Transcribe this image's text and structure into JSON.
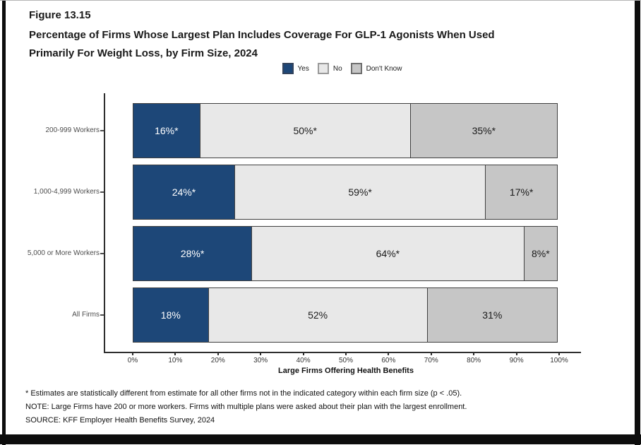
{
  "page": {
    "figure_label": "Figure 13.15",
    "title": "Percentage of Firms Whose Largest Plan Includes Coverage For GLP-1 Agonists When Used\nPrimarily For Weight Loss, by Firm Size, 2024"
  },
  "legend": {
    "items": [
      {
        "label": "Yes",
        "color": "#1d4778",
        "border": "#33435c"
      },
      {
        "label": "No",
        "color": "#e8e8e8",
        "border": "#9a9a9a"
      },
      {
        "label": "Don't Know",
        "color": "#c6c6c6",
        "border": "#6f6f6f"
      }
    ]
  },
  "chart_data": {
    "type": "bar",
    "orientation": "horizontal_stacked",
    "title": "Percentage of Firms Whose Largest Plan Includes Coverage For GLP-1 Agonists When Used Primarily For Weight Loss, by Firm Size, 2024",
    "categories": [
      "200-999 Workers",
      "1,000-4,999 Workers",
      "5,000 or More Workers",
      "All Firms"
    ],
    "series": [
      {
        "name": "Yes",
        "color": "#1d4778",
        "label_color": "#ffffff",
        "values": [
          16,
          24,
          28,
          18
        ],
        "labels": [
          "16%*",
          "24%*",
          "28%*",
          "18%"
        ]
      },
      {
        "name": "No",
        "color": "#e8e8e8",
        "label_color": "#1a1a1a",
        "values": [
          50,
          59,
          64,
          52
        ],
        "labels": [
          "50%*",
          "59%*",
          "64%*",
          "52%"
        ]
      },
      {
        "name": "Don't Know",
        "color": "#c6c6c6",
        "label_color": "#1a1a1a",
        "values": [
          35,
          17,
          8,
          31
        ],
        "labels": [
          "35%*",
          "17%*",
          "8%*",
          "31%"
        ]
      }
    ],
    "xlabel": "Large Firms Offering Health Benefits",
    "x_ticks": [
      "0%",
      "10%",
      "20%",
      "30%",
      "40%",
      "50%",
      "60%",
      "70%",
      "80%",
      "90%",
      "100%"
    ],
    "xlim": [
      0,
      100
    ],
    "grid": false,
    "legend_position": "top"
  },
  "footnotes": [
    "* Estimates are statistically different from estimate for all other firms not in the indicated category within each firm size (p < .05).",
    "NOTE: Large Firms have 200 or more workers.  Firms with multiple plans were asked about their plan with the largest enrollment.",
    "SOURCE: KFF Employer Health Benefits Survey, 2024"
  ]
}
